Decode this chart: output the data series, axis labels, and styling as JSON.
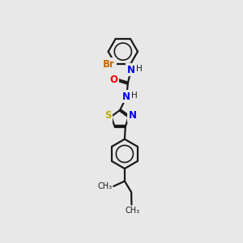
{
  "bg_color": "#e8e8e8",
  "bond_color": "#1a1a1a",
  "bond_width": 1.6,
  "colors": {
    "N": "#0000ee",
    "O": "#ee0000",
    "S": "#bbaa00",
    "Br": "#cc6600",
    "C": "#1a1a1a",
    "H": "#1a1a1a"
  },
  "font_size": 8.5,
  "fig_size": [
    3.0,
    3.0
  ],
  "dpi": 100
}
